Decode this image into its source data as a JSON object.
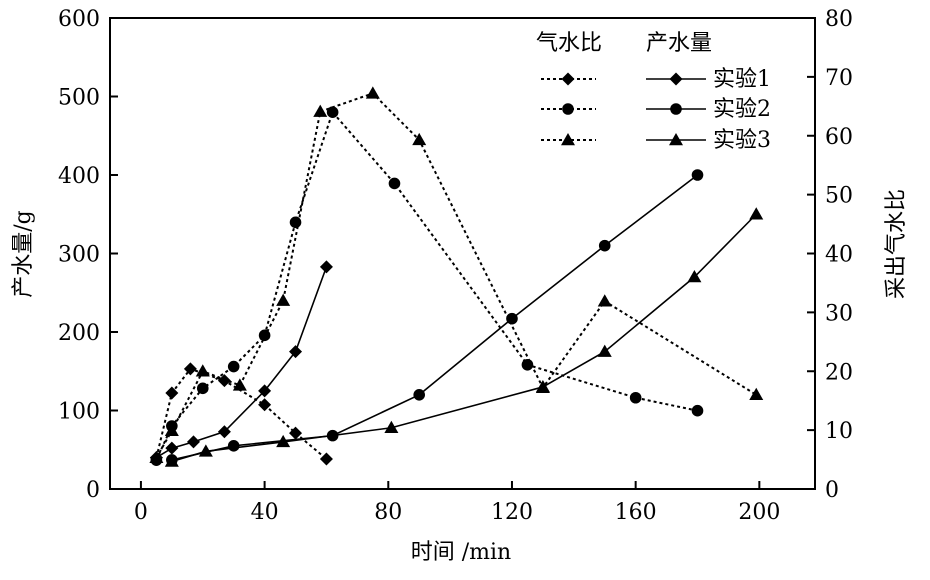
{
  "chart_data": {
    "type": "line",
    "xlabel": "时间 /min",
    "ylabel_left": "产水量/g",
    "ylabel_right": "采出气水比",
    "xlim": [
      -10,
      218
    ],
    "ylim_left": [
      0,
      600
    ],
    "ylim_right": [
      0,
      80
    ],
    "xticks": [
      0,
      40,
      80,
      120,
      160,
      200
    ],
    "yticks_left": [
      0,
      100,
      200,
      300,
      400,
      500,
      600
    ],
    "yticks_right": [
      0,
      10,
      20,
      30,
      40,
      50,
      60,
      70,
      80
    ],
    "legend": {
      "header_ratio": "气水比",
      "header_water": "产水量",
      "entries": [
        "实验1",
        "实验2",
        "实验3"
      ]
    },
    "series": [
      {
        "name": "实验1",
        "kind": "water",
        "axis": "left",
        "marker": "diamond",
        "style": "solid",
        "x": [
          5,
          10,
          17,
          27,
          40,
          50,
          60
        ],
        "y": [
          40,
          52,
          60,
          73,
          125,
          175,
          283
        ]
      },
      {
        "name": "实验2",
        "kind": "water",
        "axis": "left",
        "marker": "circle",
        "style": "solid",
        "x": [
          10,
          30,
          62,
          90,
          120,
          150,
          180
        ],
        "y": [
          37,
          55,
          68,
          120,
          217,
          310,
          400
        ]
      },
      {
        "name": "实验3",
        "kind": "water",
        "axis": "left",
        "marker": "triangle",
        "style": "solid",
        "x": [
          10,
          21,
          46,
          81,
          130,
          150,
          179,
          199
        ],
        "y": [
          35,
          48,
          60,
          78,
          130,
          175,
          270,
          350
        ]
      },
      {
        "name": "实验1",
        "kind": "ratio",
        "axis": "right",
        "marker": "diamond",
        "style": "dotted",
        "x": [
          5,
          10,
          16,
          27,
          40,
          50,
          60
        ],
        "y": [
          5.3,
          16.3,
          20.4,
          18.4,
          14.3,
          9.5,
          5.1
        ]
      },
      {
        "name": "实验2",
        "kind": "ratio",
        "axis": "right",
        "marker": "circle",
        "style": "dotted",
        "x": [
          5,
          10,
          20,
          30,
          40,
          50,
          62,
          82,
          125,
          160,
          180
        ],
        "y": [
          4.9,
          10.7,
          17.1,
          20.8,
          26.1,
          45.3,
          64.0,
          51.9,
          21.1,
          15.5,
          13.3
        ]
      },
      {
        "name": "实验3",
        "kind": "ratio",
        "axis": "right",
        "marker": "triangle",
        "style": "dotted",
        "x": [
          5,
          10,
          20,
          32,
          46,
          58,
          75,
          90,
          130,
          150,
          199
        ],
        "y": [
          5.3,
          9.9,
          20.0,
          17.6,
          32.0,
          64.1,
          67.2,
          59.3,
          17.2,
          31.9,
          16.0
        ]
      }
    ]
  }
}
